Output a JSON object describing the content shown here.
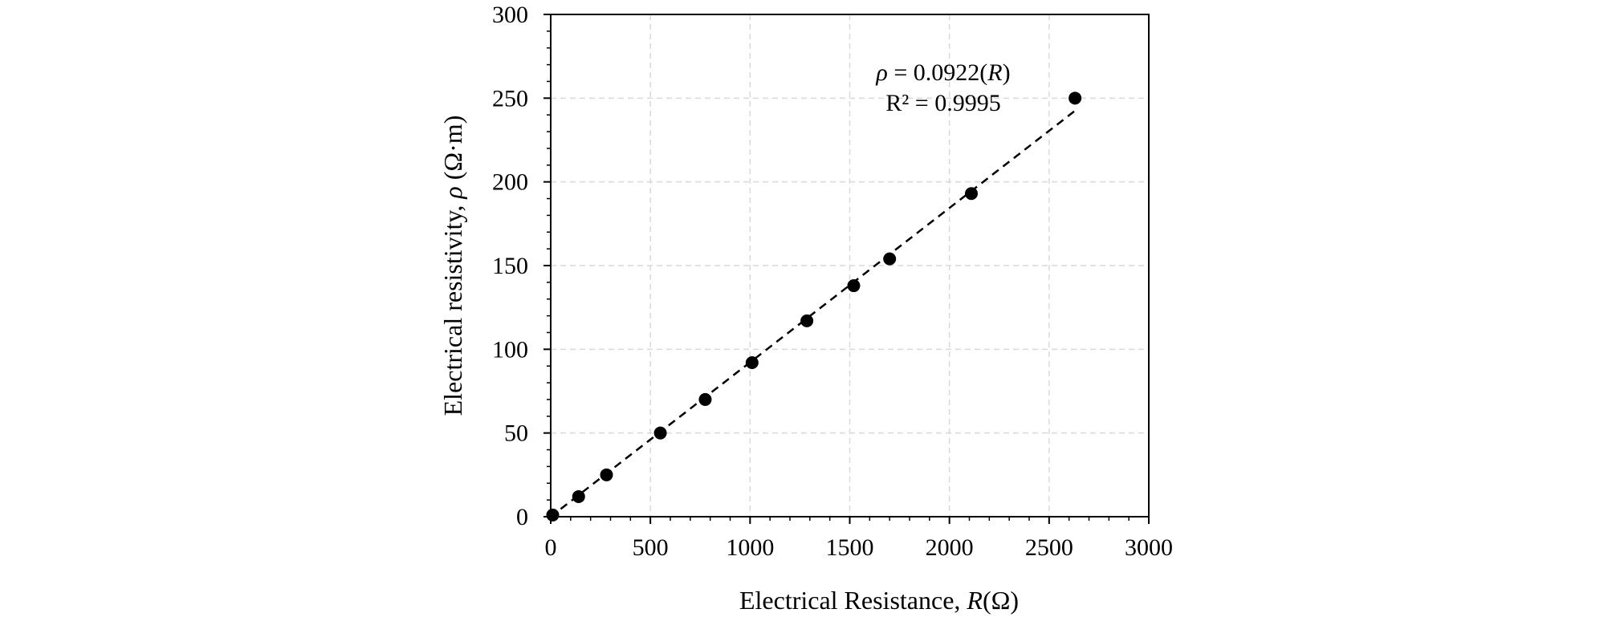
{
  "chart_data": {
    "type": "scatter",
    "x": [
      10,
      140,
      280,
      550,
      775,
      1010,
      1285,
      1520,
      1700,
      2110,
      2630
    ],
    "y": [
      1,
      12,
      25,
      50,
      70,
      92,
      117,
      138,
      154,
      193,
      250
    ],
    "xlabel": {
      "prefix": "Electrical Resistance, ",
      "symbol": "R",
      "unit": "(Ω)"
    },
    "ylabel": {
      "prefix": "Electrical resistivity, ",
      "symbol": "ρ",
      "unit": " (Ω·m)"
    },
    "xlim": [
      0,
      3000
    ],
    "ylim": [
      0,
      300
    ],
    "xticks": [
      0,
      500,
      1000,
      1500,
      2000,
      2500,
      3000
    ],
    "yticks": [
      0,
      50,
      100,
      150,
      200,
      250,
      300
    ],
    "grid": true,
    "trendline": {
      "type": "linear-through-origin",
      "slope": 0.0922,
      "x_range": [
        50,
        2640
      ],
      "style": "dashed",
      "equation": {
        "lhs": "ρ",
        "middle": " = 0.0922(",
        "var": "R",
        "end": ")"
      },
      "r_squared_text": "R² = 0.9995"
    },
    "marker_color": "#000000",
    "grid_color": "#d9d9d9"
  }
}
